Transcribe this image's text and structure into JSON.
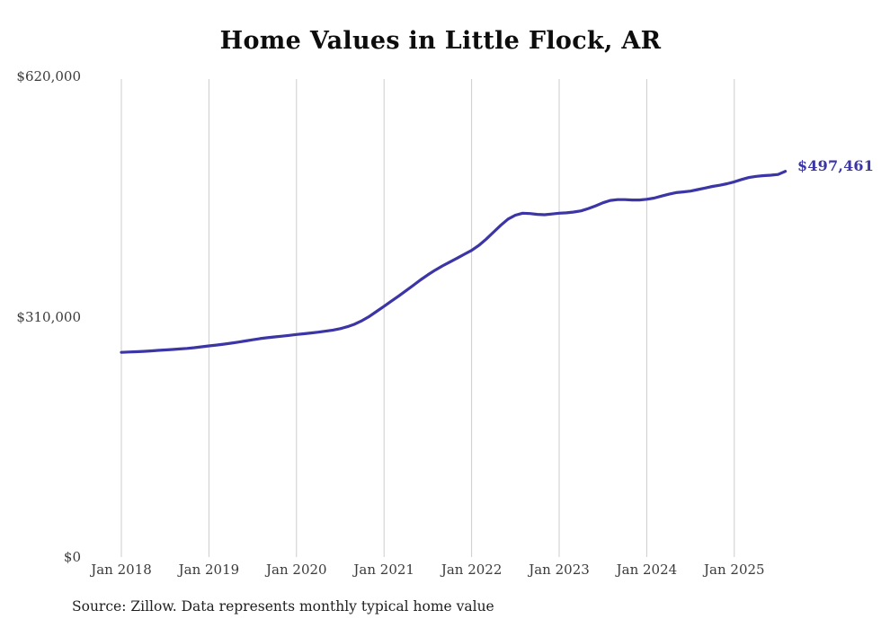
{
  "page": {
    "title": "Home Values in Little Flock, AR",
    "source_note": "Source: Zillow. Data represents monthly typical home value"
  },
  "chart_data": {
    "type": "line",
    "title": "Home Values in Little Flock, AR",
    "xlabel": "",
    "ylabel": "",
    "ylim": [
      0,
      620000
    ],
    "grid": "vertical-gridlines-only",
    "legend": "none",
    "line_color": "#3b35a6",
    "grid_color": "#cccccc",
    "label_color": "#3b3b3b",
    "end_label": "$497,461",
    "end_value": 497461,
    "source": "Source: Zillow. Data represents monthly typical home value",
    "yticks": [
      {
        "value": 0,
        "label": "$0"
      },
      {
        "value": 310000,
        "label": "$310,000"
      },
      {
        "value": 620000,
        "label": "$620,000"
      }
    ],
    "xticks": [
      "Jan 2018",
      "Jan 2019",
      "Jan 2020",
      "Jan 2021",
      "Jan 2022",
      "Jan 2023",
      "Jan 2024",
      "Jan 2025"
    ],
    "series": [
      {
        "name": "Typical home value (monthly)",
        "x": [
          "2018-01",
          "2018-02",
          "2018-03",
          "2018-04",
          "2018-05",
          "2018-06",
          "2018-07",
          "2018-08",
          "2018-09",
          "2018-10",
          "2018-11",
          "2018-12",
          "2019-01",
          "2019-02",
          "2019-03",
          "2019-04",
          "2019-05",
          "2019-06",
          "2019-07",
          "2019-08",
          "2019-09",
          "2019-10",
          "2019-11",
          "2019-12",
          "2020-01",
          "2020-02",
          "2020-03",
          "2020-04",
          "2020-05",
          "2020-06",
          "2020-07",
          "2020-08",
          "2020-09",
          "2020-10",
          "2020-11",
          "2020-12",
          "2021-01",
          "2021-02",
          "2021-03",
          "2021-04",
          "2021-05",
          "2021-06",
          "2021-07",
          "2021-08",
          "2021-09",
          "2021-10",
          "2021-11",
          "2021-12",
          "2022-01",
          "2022-02",
          "2022-03",
          "2022-04",
          "2022-05",
          "2022-06",
          "2022-07",
          "2022-08",
          "2022-09",
          "2022-10",
          "2022-11",
          "2022-12",
          "2023-01",
          "2023-02",
          "2023-03",
          "2023-04",
          "2023-05",
          "2023-06",
          "2023-07",
          "2023-08",
          "2023-09",
          "2023-10",
          "2023-11",
          "2023-12",
          "2024-01",
          "2024-02",
          "2024-03",
          "2024-04",
          "2024-05",
          "2024-06",
          "2024-07",
          "2024-08",
          "2024-09",
          "2024-10",
          "2024-11",
          "2024-12",
          "2025-01",
          "2025-02",
          "2025-03",
          "2025-04",
          "2025-05",
          "2025-06",
          "2025-07",
          "2025-08"
        ],
        "values": [
          264000,
          264400,
          264800,
          265300,
          265900,
          266500,
          267100,
          267700,
          268400,
          269100,
          270000,
          271200,
          272300,
          273400,
          274500,
          275800,
          277200,
          278700,
          280200,
          281700,
          282900,
          283900,
          284900,
          285900,
          287000,
          288000,
          289000,
          290100,
          291300,
          292700,
          294600,
          297100,
          300500,
          305000,
          310500,
          317000,
          323500,
          330000,
          336500,
          343500,
          350500,
          357500,
          364000,
          370000,
          375500,
          380500,
          385500,
          390500,
          395500,
          402000,
          410000,
          419000,
          428000,
          436000,
          441000,
          443500,
          443000,
          442000,
          441500,
          442500,
          443500,
          444000,
          445000,
          446500,
          449500,
          453000,
          457000,
          460000,
          461000,
          461000,
          460500,
          460500,
          461500,
          463000,
          465500,
          468000,
          470000,
          471000,
          472000,
          474000,
          476000,
          478000,
          479500,
          481500,
          484000,
          487000,
          489500,
          491000,
          492000,
          492500,
          493500,
          497461
        ]
      }
    ]
  }
}
